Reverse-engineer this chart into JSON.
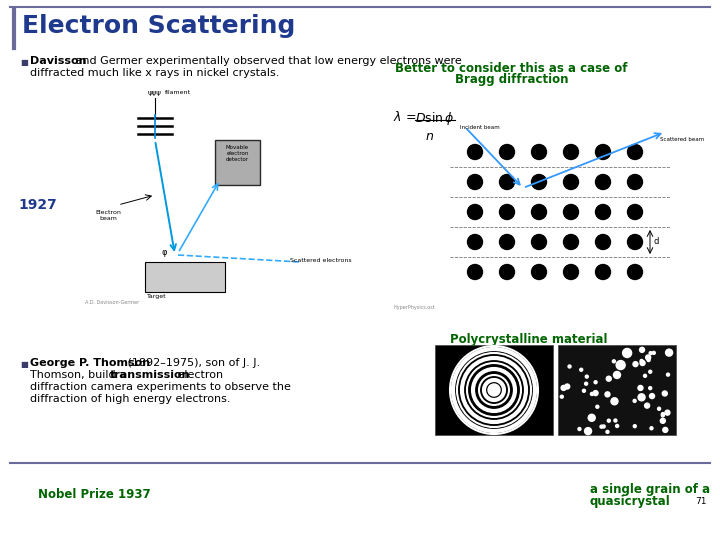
{
  "title": "Electron Scattering",
  "title_color": "#1F3A8C",
  "title_fontsize": 18,
  "bg_color": "#FFFFFF",
  "border_color": "#6B6B9B",
  "bullet1_bold": "Davisson",
  "bullet1_text": " and Germer experimentally observed that low energy electrons were\ndiffracted much like x rays in nickel crystals.",
  "bullet1_note": "Better to consider this as a case of\nBragg diffraction",
  "bullet1_note_color": "#006400",
  "year_text": "1927",
  "year_color": "#1F3A8C",
  "bullet2_bold": "George P. Thomson",
  "bullet2_text1": " (1892–1975), son of J. J.",
  "bullet2_text2": "Thomson, build a ",
  "bullet2_bold2": "transmission",
  "bullet2_text3": " electron",
  "bullet2_text4": "diffraction camera experiments to observe the",
  "bullet2_text5": "diffraction of high energy electrons.",
  "polycrystalline_label": "Polycrystalline material",
  "polycrystalline_color": "#006400",
  "nobel_text": "Nobel Prize 1937",
  "nobel_color": "#006400",
  "quasicrystal_text": "a single grain of a\nquasicrystal",
  "quasicrystal_color": "#006400",
  "page_num": "71"
}
